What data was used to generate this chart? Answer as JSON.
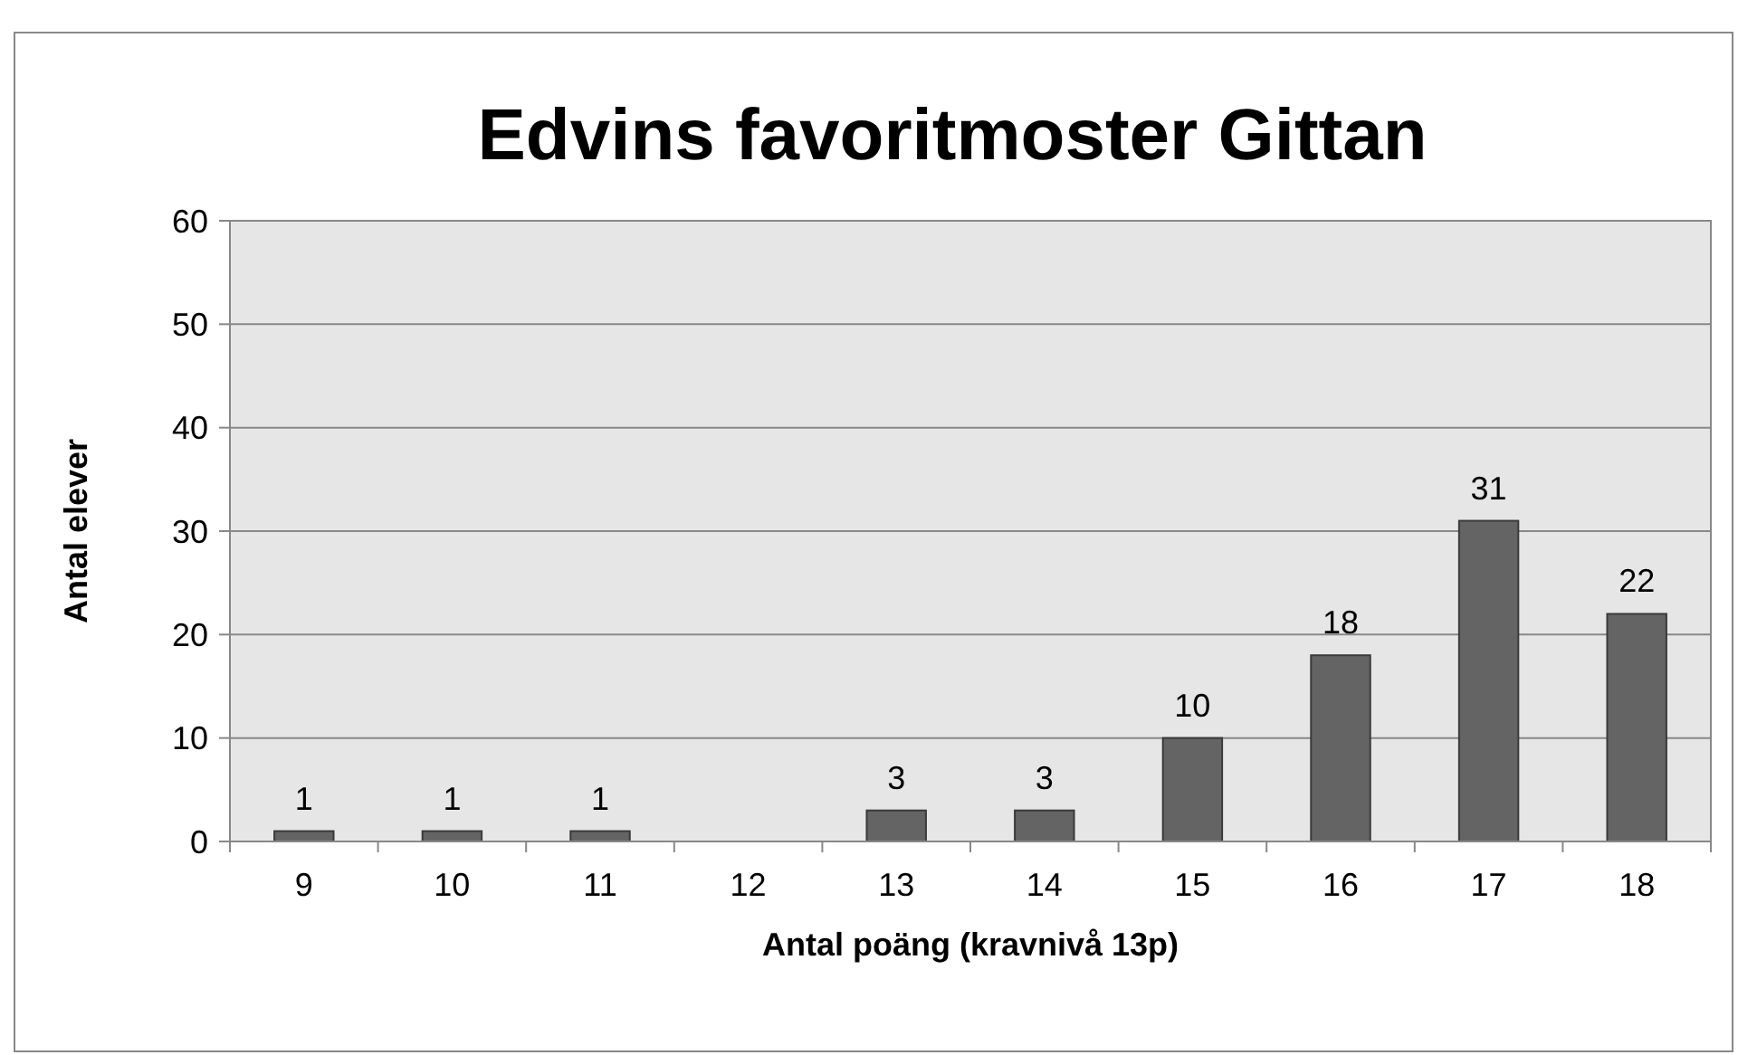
{
  "chart_data": {
    "type": "bar",
    "title": "Edvins favoritmoster Gittan",
    "xlabel": "Antal poäng (kravnivå 13p)",
    "ylabel": "Antal elever",
    "categories": [
      "9",
      "10",
      "11",
      "12",
      "13",
      "14",
      "15",
      "16",
      "17",
      "18"
    ],
    "values": [
      1,
      1,
      1,
      0,
      3,
      3,
      10,
      18,
      31,
      22
    ],
    "value_labels": [
      "1",
      "1",
      "1",
      null,
      "3",
      "3",
      "10",
      "18",
      "31",
      "22"
    ],
    "color": "#646464",
    "ylim": [
      0,
      60
    ],
    "yticks": [
      0,
      10,
      20,
      30,
      40,
      50,
      60
    ],
    "grid": "y"
  }
}
